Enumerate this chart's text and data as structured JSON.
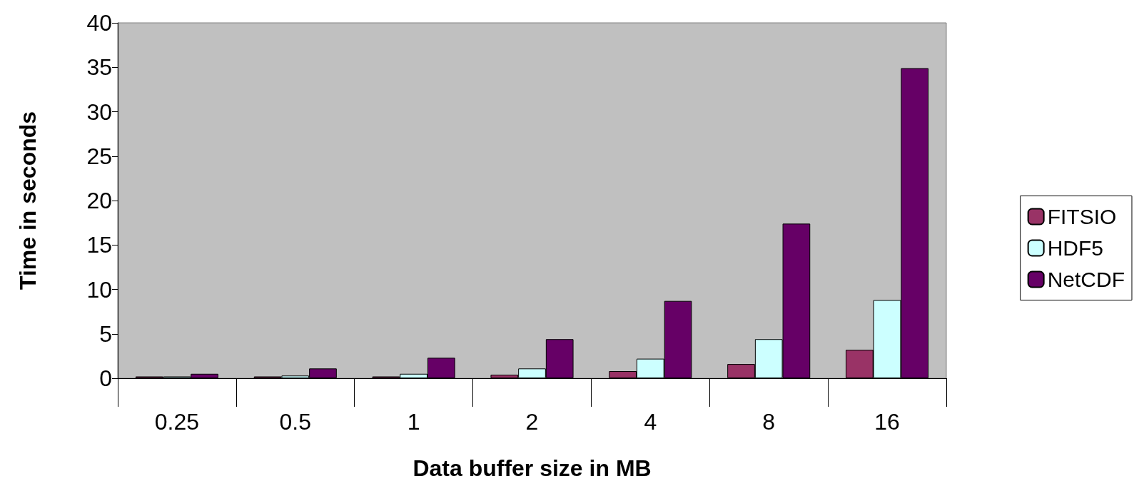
{
  "chart_data": {
    "type": "bar",
    "xlabel": "Data buffer size in MB",
    "ylabel": "Time in seconds",
    "categories": [
      "0.25",
      "0.5",
      "1",
      "2",
      "4",
      "8",
      "16"
    ],
    "series": [
      {
        "name": "FITSIO",
        "color": "#993366",
        "values": [
          0.2,
          0.2,
          0.2,
          0.4,
          0.8,
          1.6,
          3.2
        ]
      },
      {
        "name": "HDF5",
        "color": "#ccffff",
        "values": [
          0.2,
          0.3,
          0.5,
          1.1,
          2.2,
          4.4,
          8.8
        ]
      },
      {
        "name": "NetCDF",
        "color": "#660066",
        "values": [
          0.5,
          1.1,
          2.3,
          4.4,
          8.7,
          17.4,
          34.9
        ]
      }
    ],
    "ylim": [
      0,
      40
    ],
    "yticks": [
      0,
      5,
      10,
      15,
      20,
      25,
      30,
      35,
      40
    ],
    "grid": false,
    "legend": "right"
  }
}
